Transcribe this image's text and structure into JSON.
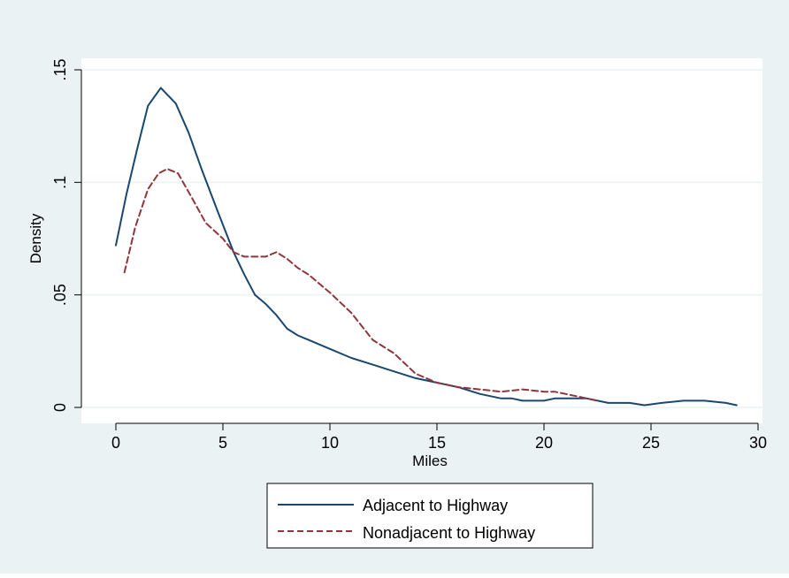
{
  "chart_data": {
    "type": "line",
    "title": "",
    "xlabel": "Miles",
    "ylabel": "Density",
    "xlim": [
      0,
      30
    ],
    "ylim": [
      0,
      0.15
    ],
    "x_ticks": [
      0,
      5,
      10,
      15,
      20,
      25,
      30
    ],
    "x_tick_labels": [
      "0",
      "5",
      "10",
      "15",
      "20",
      "25",
      "30"
    ],
    "y_ticks": [
      0,
      0.05,
      0.1,
      0.15
    ],
    "y_tick_labels": [
      "0",
      ".05",
      ".1",
      ".15"
    ],
    "grid": "horizontal",
    "legend_position": "bottom",
    "colors": {
      "background": "#eaf2f3",
      "plot_region": "#ffffff",
      "gridline": "#eaf2f3"
    },
    "series": [
      {
        "name": "Adjacent to Highway",
        "color": "#1a476f",
        "style": "solid",
        "x": [
          0,
          0.5,
          1,
          1.5,
          2.1,
          2.8,
          3.4,
          4.0,
          4.8,
          5.5,
          6.0,
          6.5,
          7.0,
          7.5,
          8.0,
          8.5,
          9.0,
          10.0,
          11.0,
          12.0,
          13.0,
          14.0,
          15.0,
          16.0,
          17.0,
          18.0,
          18.5,
          19.0,
          20.0,
          20.5,
          21.0,
          22.0,
          23.0,
          24.0,
          24.7,
          25.5,
          26.5,
          27.5,
          28.5,
          29.0
        ],
        "y": [
          0.072,
          0.095,
          0.115,
          0.134,
          0.142,
          0.135,
          0.122,
          0.106,
          0.086,
          0.069,
          0.059,
          0.05,
          0.046,
          0.041,
          0.035,
          0.032,
          0.03,
          0.026,
          0.022,
          0.019,
          0.016,
          0.013,
          0.011,
          0.009,
          0.006,
          0.004,
          0.004,
          0.003,
          0.003,
          0.004,
          0.004,
          0.004,
          0.002,
          0.002,
          0.001,
          0.002,
          0.003,
          0.003,
          0.002,
          0.001
        ]
      },
      {
        "name": "Nonadjacent to Highway",
        "color": "#90353b",
        "style": "dashed",
        "x": [
          0.4,
          0.9,
          1.5,
          2.0,
          2.4,
          2.9,
          3.5,
          4.2,
          5.0,
          5.5,
          6.0,
          6.5,
          7.0,
          7.5,
          8.0,
          8.5,
          9.0,
          10.0,
          11.0,
          12.0,
          13.0,
          14.0,
          15.0,
          16.0,
          17.0,
          18.0,
          19.0,
          20.0,
          20.5,
          21.0,
          22.0,
          22.5
        ],
        "y": [
          0.06,
          0.08,
          0.097,
          0.104,
          0.106,
          0.104,
          0.094,
          0.082,
          0.075,
          0.069,
          0.067,
          0.067,
          0.067,
          0.069,
          0.066,
          0.062,
          0.059,
          0.051,
          0.042,
          0.03,
          0.024,
          0.015,
          0.011,
          0.009,
          0.008,
          0.007,
          0.008,
          0.007,
          0.007,
          0.006,
          0.004,
          0.003
        ]
      }
    ]
  }
}
